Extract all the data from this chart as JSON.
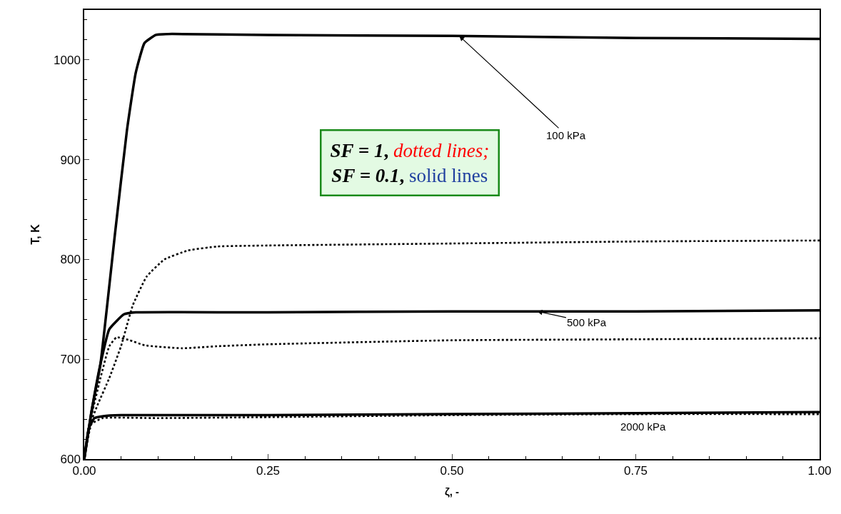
{
  "chart_data": {
    "type": "line",
    "xlabel": "ζ, -",
    "ylabel": "T, K",
    "xlim": [
      0,
      1
    ],
    "ylim": [
      600,
      1050
    ],
    "xticks": [
      {
        "value": 0,
        "label": "0.00"
      },
      {
        "value": 0.25,
        "label": "0.25"
      },
      {
        "value": 0.5,
        "label": "0.50"
      },
      {
        "value": 0.75,
        "label": "0.75"
      },
      {
        "value": 1,
        "label": "1.00"
      }
    ],
    "yticks": [
      600,
      700,
      800,
      900,
      1000
    ],
    "marker": "none",
    "series": [
      {
        "color": "#000000",
        "line_style": "solid",
        "x": [
          0,
          0.01,
          0.022,
          0.042,
          0.058,
          0.07,
          0.082,
          0.0975,
          0.12,
          0.25,
          0.5,
          0.75,
          1.0
        ],
        "values": [
          600,
          648,
          695,
          827,
          929,
          987,
          1017,
          1025,
          1026,
          1025,
          1024,
          1022,
          1021
        ]
      },
      {
        "color": "#000000",
        "line_style": "solid",
        "x": [
          0,
          0.01,
          0.022,
          0.034,
          0.054,
          0.07,
          0.25,
          0.5,
          0.75,
          1.0
        ],
        "values": [
          600,
          648,
          695,
          730,
          745,
          747,
          747,
          748,
          748,
          749
        ]
      },
      {
        "color": "#000000",
        "line_style": "solid",
        "x": [
          0,
          0.0063,
          0.014,
          0.026,
          0.05,
          0.25,
          0.5,
          0.75,
          1.0
        ],
        "values": [
          600,
          631,
          641,
          643,
          644,
          644,
          645,
          646,
          647
        ]
      },
      {
        "color": "#000000",
        "line_style": "dotted",
        "x": [
          0,
          0.006,
          0.018,
          0.034,
          0.05,
          0.066,
          0.085,
          0.109,
          0.141,
          0.181,
          0.25,
          0.5,
          0.75,
          1.0
        ],
        "values": [
          600,
          631,
          654,
          681,
          713,
          754,
          783,
          800,
          809,
          813,
          814,
          816,
          818,
          819
        ]
      },
      {
        "color": "#000000",
        "line_style": "dotted",
        "x": [
          0,
          0.006,
          0.022,
          0.034,
          0.044,
          0.062,
          0.082,
          0.133,
          0.18,
          0.25,
          0.5,
          0.75,
          1.0
        ],
        "values": [
          600,
          631,
          681,
          713,
          722,
          719,
          714,
          711,
          713,
          715,
          719,
          720,
          721
        ]
      },
      {
        "color": "#000000",
        "line_style": "dotted",
        "x": [
          0,
          0.01,
          0.025,
          0.1,
          0.25,
          0.5,
          0.75,
          1.0
        ],
        "values": [
          600,
          635,
          641,
          641,
          642,
          644,
          645,
          645
        ]
      }
    ],
    "annotations": [
      {
        "text": "100 kPa",
        "x": 0.51,
        "y": 1024
      },
      {
        "text": "500 kPa",
        "x": 0.616,
        "y": 748
      },
      "2000 kPa",
      "SF = 1, dotted lines;",
      "SF = 0.1, solid lines"
    ]
  }
}
